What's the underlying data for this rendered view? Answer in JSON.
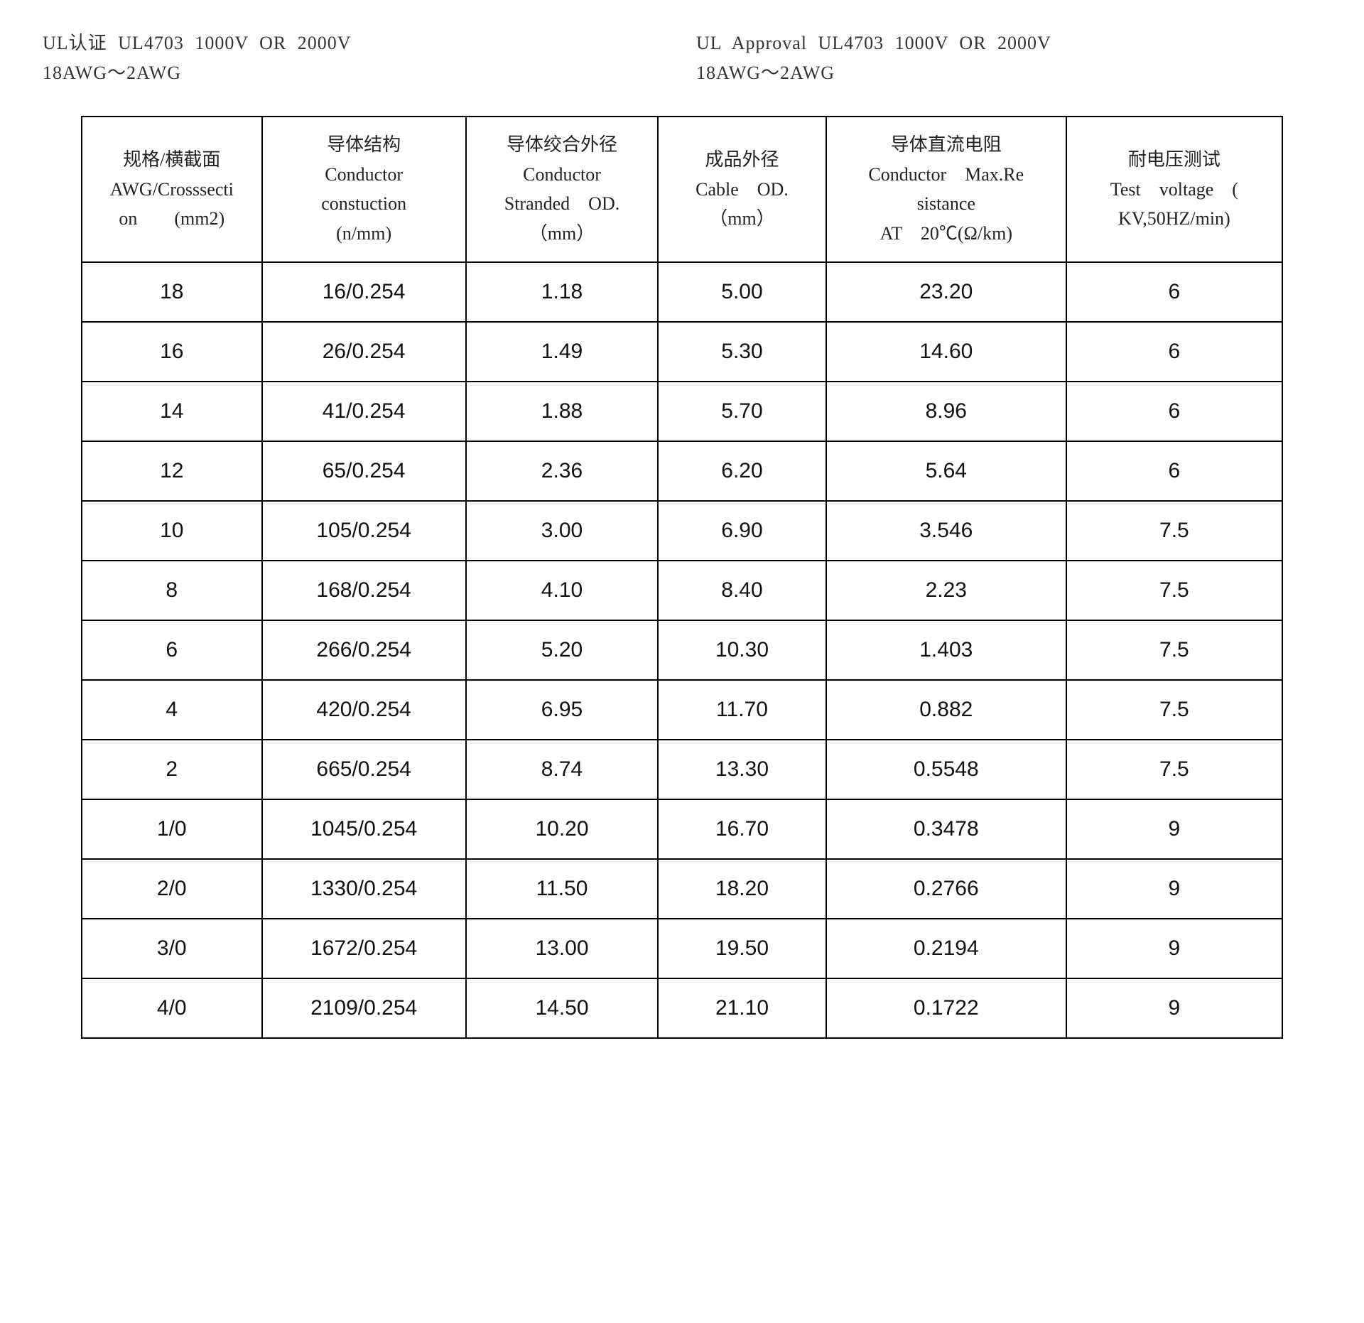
{
  "header": {
    "left": {
      "line1": "UL认证  UL4703  1000V OR 2000V",
      "line2": "18AWG～2AWG"
    },
    "right": {
      "line1": "UL  Approval  UL4703  1000V OR 2000V",
      "line2": "18AWG～2AWG"
    }
  },
  "table": {
    "type": "table",
    "border_color": "#000000",
    "background_color": "#ffffff",
    "header_font_family": "SimSun",
    "data_font_family": "Arial",
    "header_fontsize": 26,
    "data_fontsize": 30,
    "columns": [
      {
        "lines": [
          "规格/横截面",
          "AWG/Crosssecti",
          "on　　(mm2)"
        ],
        "width_pct": 15
      },
      {
        "lines": [
          "导体结构",
          "Conductor",
          "constuction",
          "(n/mm)"
        ],
        "width_pct": 17
      },
      {
        "lines": [
          "导体绞合外径",
          "Conductor",
          "Stranded　OD.",
          "（mm）"
        ],
        "width_pct": 16
      },
      {
        "lines": [
          "成品外径",
          "Cable　OD.",
          "（mm）"
        ],
        "width_pct": 14
      },
      {
        "lines": [
          "导体直流电阻",
          "Conductor　Max.Re",
          "sistance",
          "AT　20℃(Ω/km)"
        ],
        "width_pct": 20
      },
      {
        "lines": [
          "耐电压测试",
          "Test　voltage　(",
          "KV,50HZ/min)"
        ],
        "width_pct": 18
      }
    ],
    "rows": [
      [
        "18",
        "16/0.254",
        "1.18",
        "5.00",
        "23.20",
        "6"
      ],
      [
        "16",
        "26/0.254",
        "1.49",
        "5.30",
        "14.60",
        "6"
      ],
      [
        "14",
        "41/0.254",
        "1.88",
        "5.70",
        "8.96",
        "6"
      ],
      [
        "12",
        "65/0.254",
        "2.36",
        "6.20",
        "5.64",
        "6"
      ],
      [
        "10",
        "105/0.254",
        "3.00",
        "6.90",
        "3.546",
        "7.5"
      ],
      [
        "8",
        "168/0.254",
        "4.10",
        "8.40",
        "2.23",
        "7.5"
      ],
      [
        "6",
        "266/0.254",
        "5.20",
        "10.30",
        "1.403",
        "7.5"
      ],
      [
        "4",
        "420/0.254",
        "6.95",
        "11.70",
        "0.882",
        "7.5"
      ],
      [
        "2",
        "665/0.254",
        "8.74",
        "13.30",
        "0.5548",
        "7.5"
      ],
      [
        "1/0",
        "1045/0.254",
        "10.20",
        "16.70",
        "0.3478",
        "9"
      ],
      [
        "2/0",
        "1330/0.254",
        "11.50",
        "18.20",
        "0.2766",
        "9"
      ],
      [
        "3/0",
        "1672/0.254",
        "13.00",
        "19.50",
        "0.2194",
        "9"
      ],
      [
        "4/0",
        "2109/0.254",
        "14.50",
        "21.10",
        "0.1722",
        "9"
      ]
    ]
  }
}
